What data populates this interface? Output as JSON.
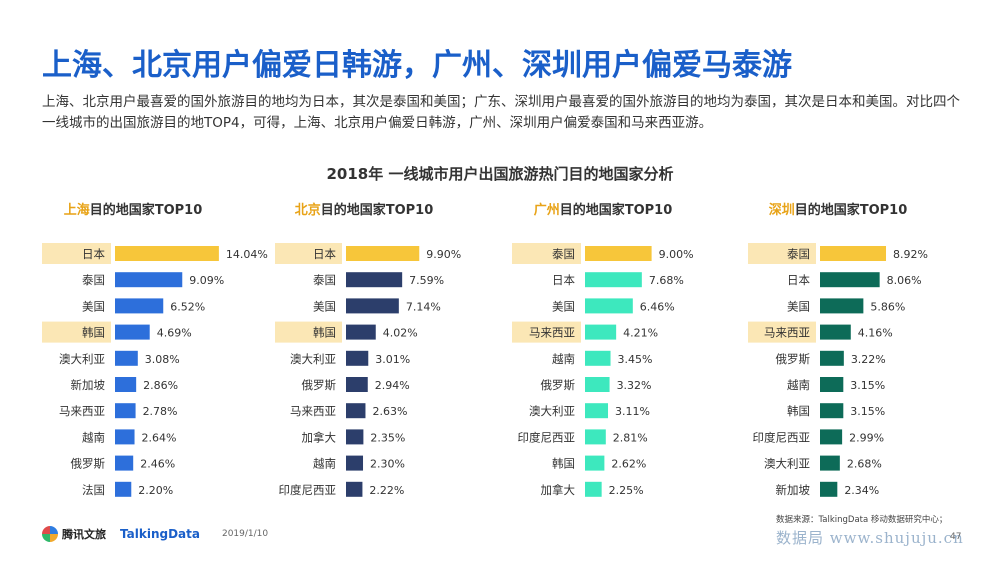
{
  "title": "上海、北京用户偏爱日韩游，广州、深圳用户偏爱马泰游",
  "description": "上海、北京用户最喜爱的国外旅游目的地均为日本，其次是泰国和美国；广东、深圳用户最喜爱的国外旅游目的地均为泰国，其次是日本和美国。对比四个一线城市的出国旅游目的地TOP4，可得，上海、北京用户偏爱日韩游，广州、深圳用户偏爱泰国和马来西亚游。",
  "chart_title": "2018年 一线城市用户出国旅游热门目的地国家分析",
  "footer": {
    "logo1": "腾讯文旅",
    "logo2": "TalkingData",
    "date": "2019/1/10",
    "source": "数据来源：TalkingData 移动数据研究中心；",
    "page": "47",
    "watermark": "数据局 www.shujuju.cn"
  },
  "colors": {
    "highlight_bar": "#f7c63a",
    "highlight_label_bg": "#fbe7b5",
    "city_name": "#e8a317",
    "shanghai": "#2d6fdb",
    "beijing": "#2c3e6b",
    "guangzhou": "#3de8be",
    "shenzhen": "#0d6b58"
  },
  "chart_data": [
    {
      "type": "bar",
      "city": "上海",
      "subtitle": "目的地国家TOP10",
      "categories": [
        "日本",
        "泰国",
        "美国",
        "韩国",
        "澳大利亚",
        "新加坡",
        "马来西亚",
        "越南",
        "俄罗斯",
        "法国"
      ],
      "values": [
        14.04,
        9.09,
        6.52,
        4.69,
        3.08,
        2.86,
        2.78,
        2.64,
        2.46,
        2.2
      ],
      "labels": [
        "14.04%",
        "9.09%",
        "6.52%",
        "4.69%",
        "3.08%",
        "2.86%",
        "2.78%",
        "2.64%",
        "2.46%",
        "2.20%"
      ],
      "highlight": [
        0,
        3
      ],
      "color": "#2d6fdb",
      "highlight_color": "#f7c63a"
    },
    {
      "type": "bar",
      "city": "北京",
      "subtitle": "目的地国家TOP10",
      "categories": [
        "日本",
        "泰国",
        "美国",
        "韩国",
        "澳大利亚",
        "俄罗斯",
        "马来西亚",
        "加拿大",
        "越南",
        "印度尼西亚"
      ],
      "values": [
        9.9,
        7.59,
        7.14,
        4.02,
        3.01,
        2.94,
        2.63,
        2.35,
        2.3,
        2.22
      ],
      "labels": [
        "9.90%",
        "7.59%",
        "7.14%",
        "4.02%",
        "3.01%",
        "2.94%",
        "2.63%",
        "2.35%",
        "2.30%",
        "2.22%"
      ],
      "highlight": [
        0,
        3
      ],
      "color": "#2c3e6b",
      "highlight_color": "#f7c63a"
    },
    {
      "type": "bar",
      "city": "广州",
      "subtitle": "目的地国家TOP10",
      "categories": [
        "泰国",
        "日本",
        "美国",
        "马来西亚",
        "越南",
        "俄罗斯",
        "澳大利亚",
        "印度尼西亚",
        "韩国",
        "加拿大"
      ],
      "values": [
        9.0,
        7.68,
        6.46,
        4.21,
        3.45,
        3.32,
        3.11,
        2.81,
        2.62,
        2.25
      ],
      "labels": [
        "9.00%",
        "7.68%",
        "6.46%",
        "4.21%",
        "3.45%",
        "3.32%",
        "3.11%",
        "2.81%",
        "2.62%",
        "2.25%"
      ],
      "highlight": [
        0,
        3
      ],
      "color": "#3de8be",
      "highlight_color": "#f7c63a"
    },
    {
      "type": "bar",
      "city": "深圳",
      "subtitle": "目的地国家TOP10",
      "categories": [
        "泰国",
        "日本",
        "美国",
        "马来西亚",
        "俄罗斯",
        "越南",
        "韩国",
        "印度尼西亚",
        "澳大利亚",
        "新加坡"
      ],
      "values": [
        8.92,
        8.06,
        5.86,
        4.16,
        3.22,
        3.15,
        3.15,
        2.99,
        2.68,
        2.34
      ],
      "labels": [
        "8.92%",
        "8.06%",
        "5.86%",
        "4.16%",
        "3.22%",
        "3.15%",
        "3.15%",
        "2.99%",
        "2.68%",
        "2.34%"
      ],
      "highlight": [
        0,
        3
      ],
      "color": "#0d6b58",
      "highlight_color": "#f7c63a"
    }
  ]
}
